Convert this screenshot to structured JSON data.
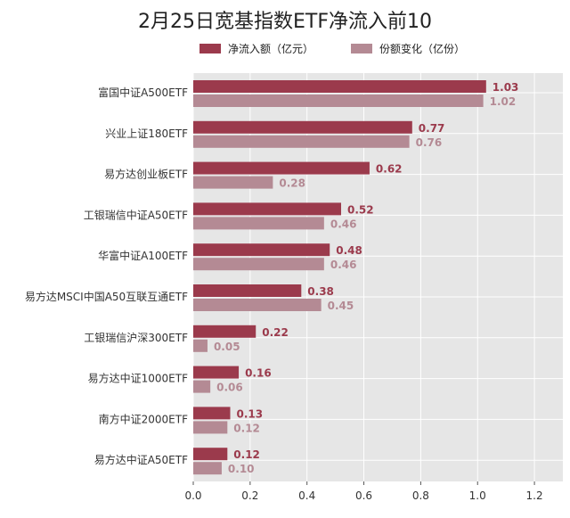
{
  "chart_data": {
    "type": "bar",
    "orientation": "horizontal",
    "title": "2月25日宽基指数ETF净流入前10",
    "categories": [
      "富国中证A500ETF",
      "兴业上证180ETF",
      "易方达创业板ETF",
      "工银瑞信中证A50ETF",
      "华富中证A100ETF",
      "易方达MSCI中国A50互联互通ETF",
      "工银瑞信沪深300ETF",
      "易方达中证1000ETF",
      "南方中证2000ETF",
      "易方达中证A50ETF"
    ],
    "series": [
      {
        "name": "净流入额（亿元）",
        "values": [
          1.03,
          0.77,
          0.62,
          0.52,
          0.48,
          0.38,
          0.22,
          0.16,
          0.13,
          0.12
        ],
        "labels": [
          "1.03",
          "0.77",
          "0.62",
          "0.52",
          "0.48",
          "0.38",
          "0.22",
          "0.16",
          "0.13",
          "0.12"
        ]
      },
      {
        "name": "份额变化（亿份）",
        "values": [
          1.02,
          0.76,
          0.28,
          0.46,
          0.46,
          0.45,
          0.05,
          0.06,
          0.12,
          0.1
        ],
        "labels": [
          "1.02",
          "0.76",
          "0.28",
          "0.46",
          "0.46",
          "0.45",
          "0.05",
          "0.06",
          "0.12",
          "0.10"
        ]
      }
    ],
    "xlim": [
      0,
      1.3
    ],
    "xticks": [
      0.0,
      0.2,
      0.4,
      0.6,
      0.8,
      1.0,
      1.2
    ],
    "xtick_labels": [
      "0.0",
      "0.2",
      "0.4",
      "0.6",
      "0.8",
      "1.0",
      "1.2"
    ],
    "grid": true,
    "legend_position": "top",
    "colors": {
      "series1": "#9b3a4c",
      "series2": "#b48a94",
      "background": "#e6e6e6",
      "grid": "#ffffff"
    }
  }
}
